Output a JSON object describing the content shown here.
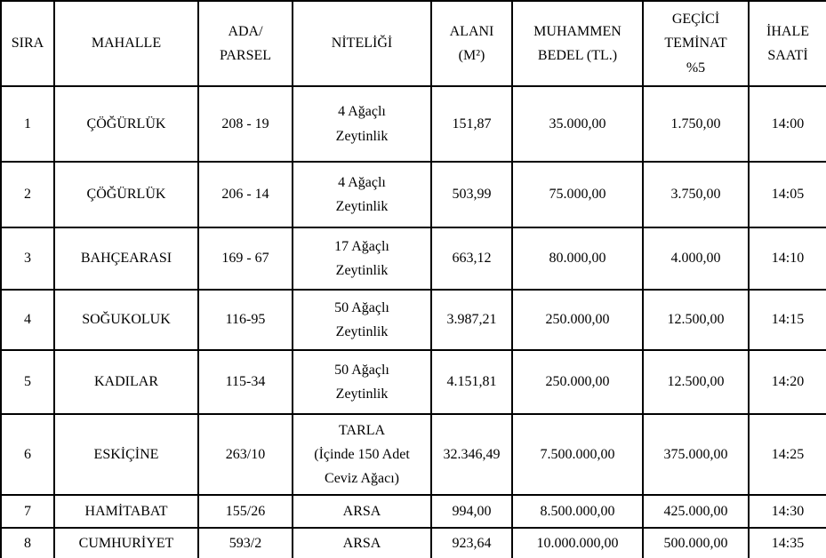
{
  "colors": {
    "border": "#000000",
    "background": "#ffffff",
    "text": "#000000"
  },
  "table": {
    "headers": {
      "sira": "SIRA",
      "mahalle": "MAHALLE",
      "ada_parsel": "ADA/\nPARSEL",
      "niteligi": "NİTELİĞİ",
      "alani": "ALANI\n(M²)",
      "muhammen_bedel": "MUHAMMEN\nBEDEL (TL.)",
      "gecici_teminat": "GEÇİCİ\nTEMİNAT\n%5",
      "ihale_saati": "İHALE\nSAATİ"
    },
    "rows": [
      {
        "sira": "1",
        "mahalle": "ÇÖĞÜRLÜK",
        "ada_parsel": "208 - 19",
        "niteligi": "4 Ağaçlı\nZeytinlik",
        "alani": "151,87",
        "muhammen_bedel": "35.000,00",
        "gecici_teminat": "1.750,00",
        "ihale_saati": "14:00"
      },
      {
        "sira": "2",
        "mahalle": "ÇÖĞÜRLÜK",
        "ada_parsel": "206 - 14",
        "niteligi": "4 Ağaçlı\nZeytinlik",
        "alani": "503,99",
        "muhammen_bedel": "75.000,00",
        "gecici_teminat": "3.750,00",
        "ihale_saati": "14:05"
      },
      {
        "sira": "3",
        "mahalle": "BAHÇEARASI",
        "ada_parsel": "169 - 67",
        "niteligi": "17 Ağaçlı\nZeytinlik",
        "alani": "663,12",
        "muhammen_bedel": "80.000,00",
        "gecici_teminat": "4.000,00",
        "ihale_saati": "14:10"
      },
      {
        "sira": "4",
        "mahalle": "SOĞUKOLUK",
        "ada_parsel": "116-95",
        "niteligi": "50 Ağaçlı\nZeytinlik",
        "alani": "3.987,21",
        "muhammen_bedel": "250.000,00",
        "gecici_teminat": "12.500,00",
        "ihale_saati": "14:15"
      },
      {
        "sira": "5",
        "mahalle": "KADILAR",
        "ada_parsel": "115-34",
        "niteligi": "50 Ağaçlı\nZeytinlik",
        "alani": "4.151,81",
        "muhammen_bedel": "250.000,00",
        "gecici_teminat": "12.500,00",
        "ihale_saati": "14:20"
      },
      {
        "sira": "6",
        "mahalle": "ESKİÇİNE",
        "ada_parsel": "263/10",
        "niteligi": "TARLA\n(İçinde 150 Adet\nCeviz Ağacı)",
        "alani": "32.346,49",
        "muhammen_bedel": "7.500.000,00",
        "gecici_teminat": "375.000,00",
        "ihale_saati": "14:25"
      },
      {
        "sira": "7",
        "mahalle": "HAMİTABAT",
        "ada_parsel": "155/26",
        "niteligi": "ARSA",
        "alani": "994,00",
        "muhammen_bedel": "8.500.000,00",
        "gecici_teminat": "425.000,00",
        "ihale_saati": "14:30"
      },
      {
        "sira": "8",
        "mahalle": "CUMHURİYET",
        "ada_parsel": "593/2",
        "niteligi": "ARSA",
        "alani": "923,64",
        "muhammen_bedel": "10.000.000,00",
        "gecici_teminat": "500.000,00",
        "ihale_saati": "14:35"
      }
    ]
  }
}
